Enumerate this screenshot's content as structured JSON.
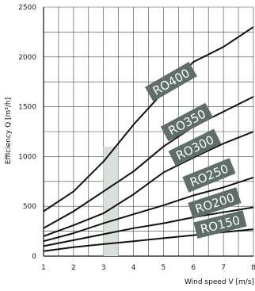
{
  "chart_data": {
    "type": "line",
    "title": "",
    "xlabel": "Wind speed V [m/s]",
    "ylabel": "Efficiency Q [m³/h]",
    "xlim": [
      1,
      8
    ],
    "ylim": [
      0,
      2500
    ],
    "x_ticks": [
      "1",
      "2",
      "3",
      "4",
      "5",
      "6",
      "7",
      "8"
    ],
    "y_ticks": [
      "0",
      "500",
      "1000",
      "1500",
      "2000",
      "2500"
    ],
    "grid": true,
    "shaded_region": {
      "x": [
        3,
        3.5
      ],
      "y_top": 1100
    },
    "series": [
      {
        "name": "RO400",
        "x": [
          1,
          2,
          3,
          4,
          5,
          6,
          7,
          8
        ],
        "y": [
          450,
          650,
          950,
          1320,
          1650,
          1950,
          2100,
          2300
        ]
      },
      {
        "name": "RO350",
        "x": [
          1,
          2,
          3,
          4,
          5,
          6,
          7,
          8
        ],
        "y": [
          280,
          450,
          650,
          850,
          1100,
          1300,
          1450,
          1600
        ]
      },
      {
        "name": "RO300",
        "x": [
          1,
          2,
          3,
          4,
          5,
          6,
          7,
          8
        ],
        "y": [
          200,
          310,
          430,
          620,
          840,
          990,
          1130,
          1250
        ]
      },
      {
        "name": "RO250",
        "x": [
          1,
          2,
          3,
          4,
          5,
          6,
          7,
          8
        ],
        "y": [
          150,
          230,
          330,
          420,
          510,
          610,
          690,
          790
        ]
      },
      {
        "name": "RO200",
        "x": [
          1,
          2,
          3,
          4,
          5,
          6,
          7,
          8
        ],
        "y": [
          100,
          160,
          220,
          280,
          330,
          390,
          440,
          490
        ]
      },
      {
        "name": "RO150",
        "x": [
          1,
          2,
          3,
          4,
          5,
          6,
          7,
          8
        ],
        "y": [
          50,
          90,
          120,
          150,
          180,
          210,
          240,
          270
        ]
      }
    ],
    "series_color": "#111111",
    "label_box_color": "#5f6e66",
    "label_text_color": "#ffffff",
    "shade_color": "#d9e0db"
  }
}
